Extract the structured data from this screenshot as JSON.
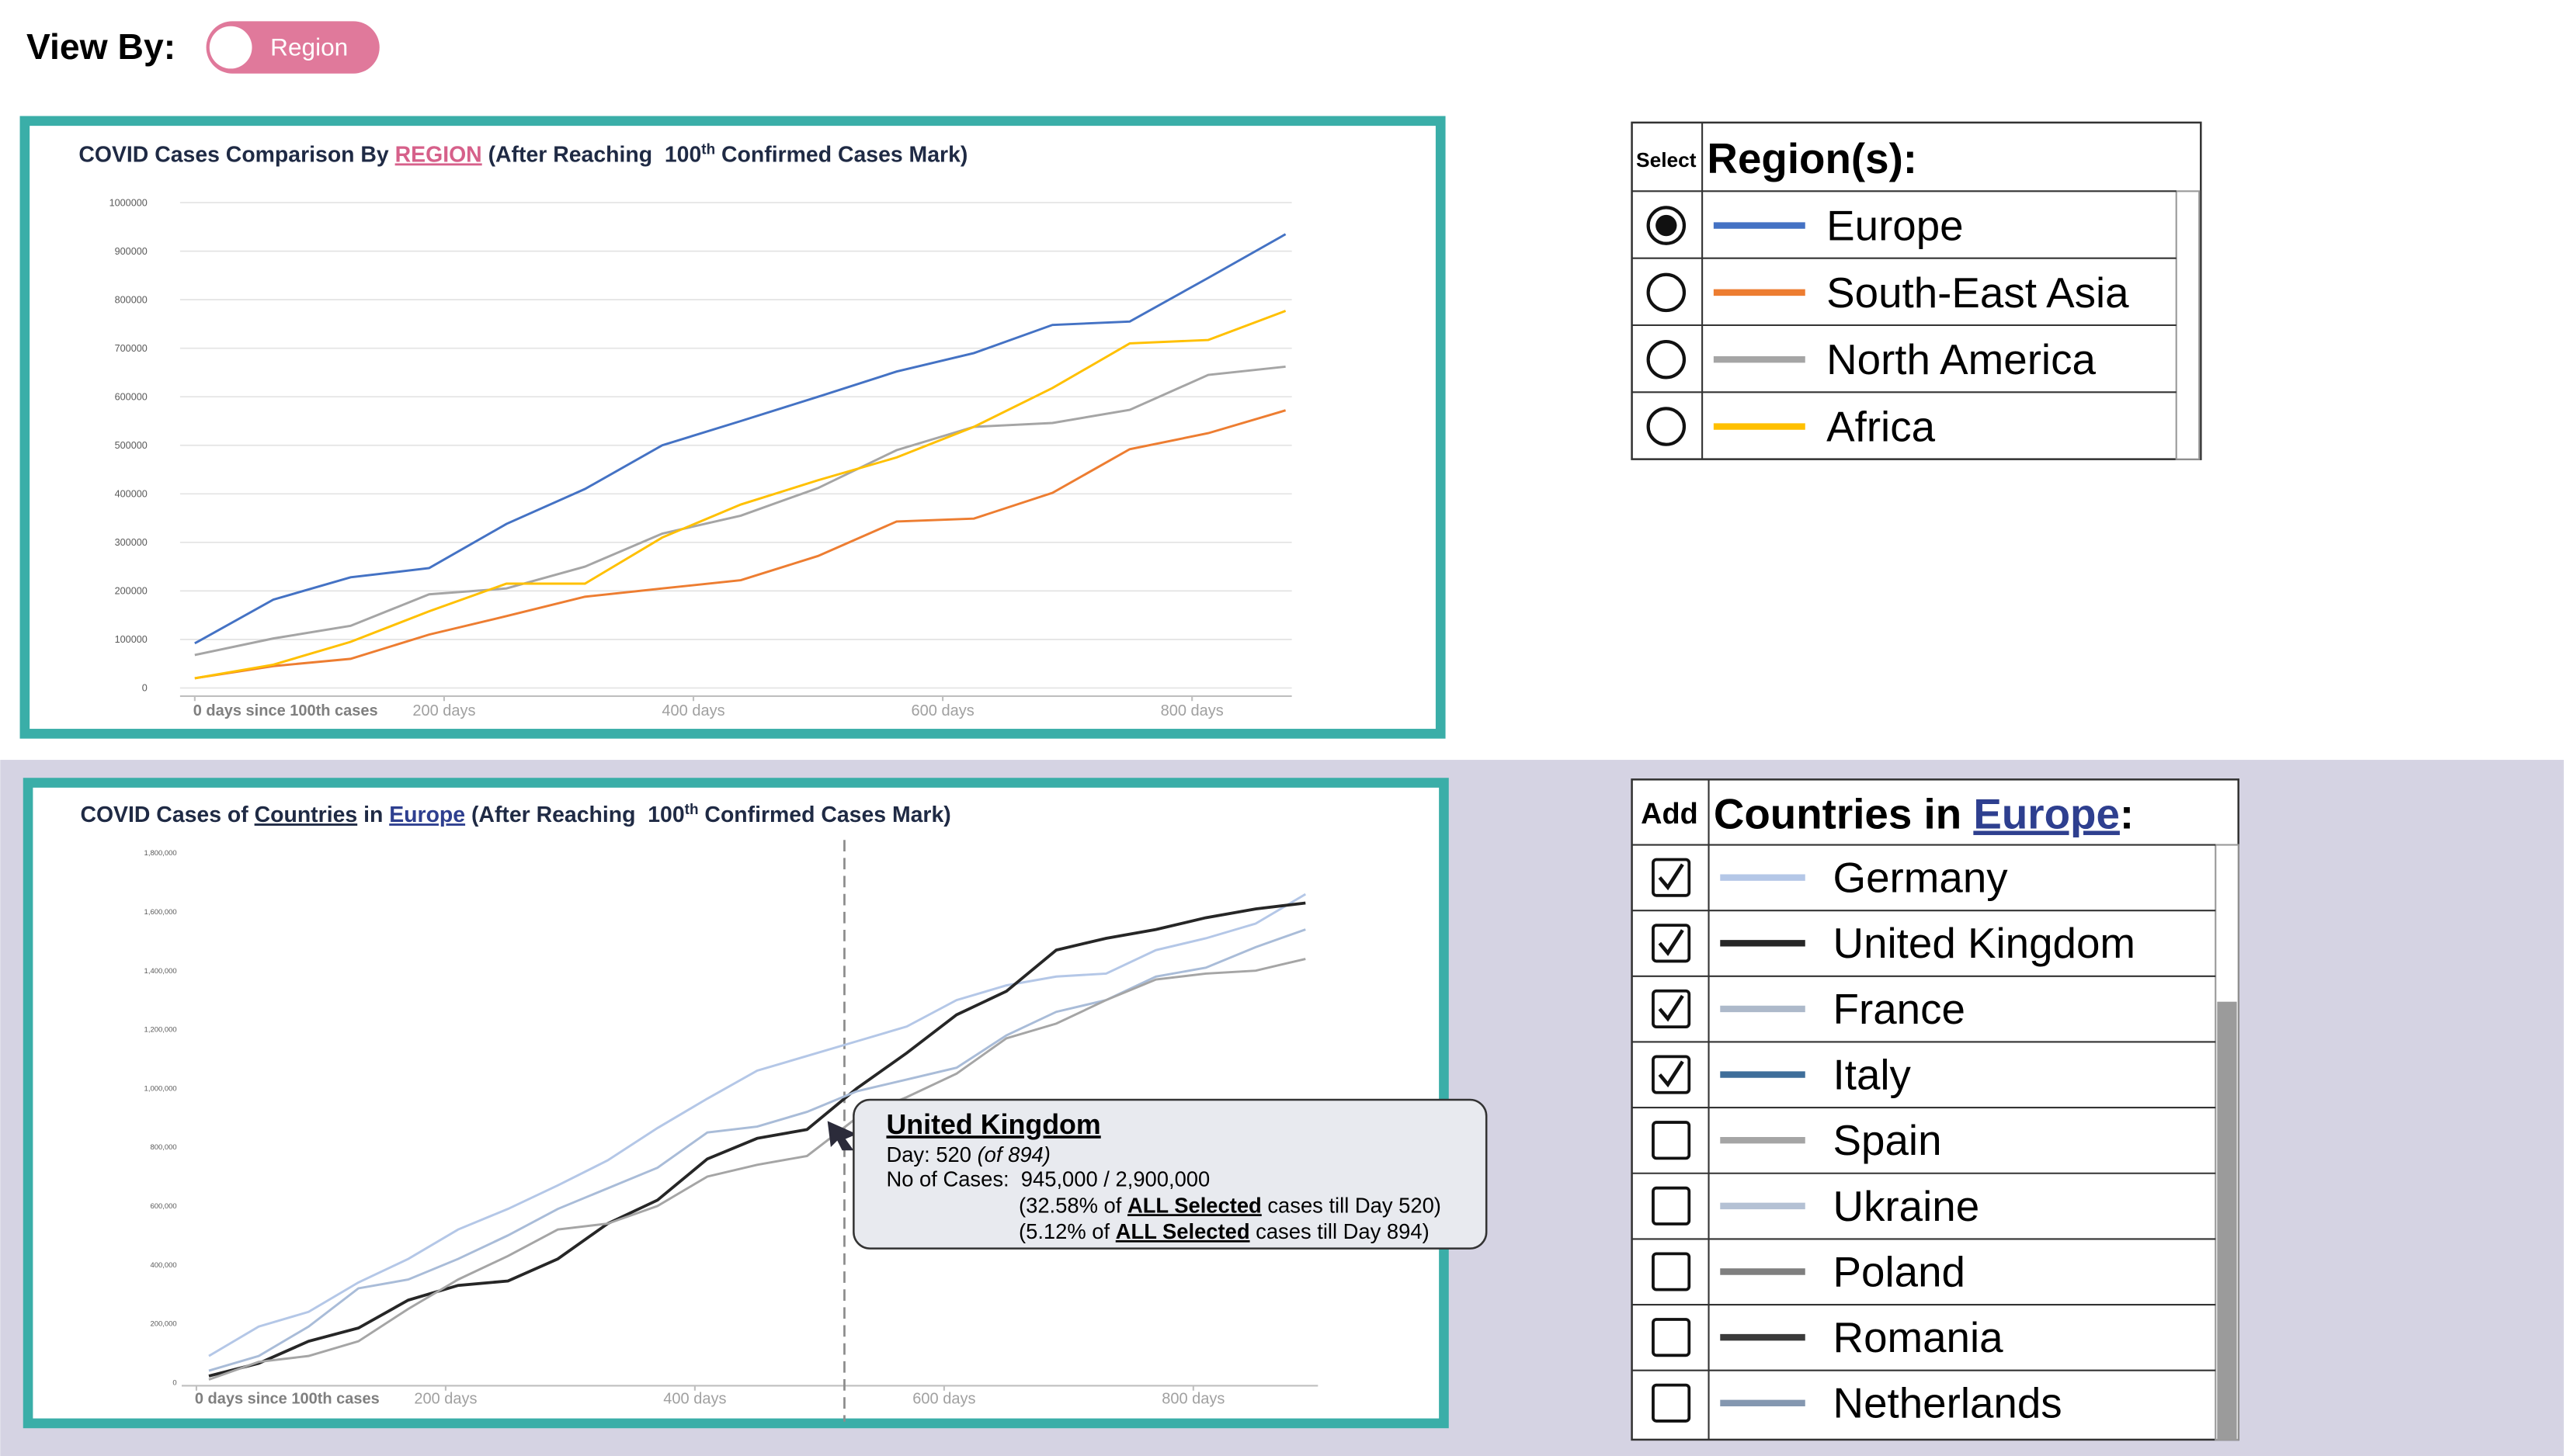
{
  "header": {
    "label": "View By:",
    "toggle": "Region"
  },
  "chart_data": [
    {
      "type": "line",
      "title_parts": [
        "COVID Cases Comparison By ",
        "REGION",
        " (After Reaching  100",
        "th",
        " Confirmed Cases Mark)"
      ],
      "x": [
        0,
        63,
        125,
        188,
        250,
        313,
        375,
        438,
        500,
        563,
        625,
        688,
        750,
        813,
        875
      ],
      "series": [
        {
          "name": "Europe",
          "color": "#4472c4",
          "values": [
            92000,
            182000,
            228000,
            247000,
            338000,
            410000,
            500000,
            550000,
            600000,
            652000,
            690000,
            748000,
            755000,
            845000,
            935000
          ]
        },
        {
          "name": "South-East Asia",
          "color": "#ed7d31",
          "values": [
            20000,
            45000,
            60000,
            110000,
            148000,
            188000,
            205000,
            222000,
            272000,
            343000,
            349000,
            402000,
            492000,
            525000,
            572000
          ]
        },
        {
          "name": "North America",
          "color": "#a5a5a5",
          "values": [
            68000,
            102000,
            128000,
            193000,
            205000,
            250000,
            318000,
            355000,
            412000,
            490000,
            538000,
            546000,
            573000,
            645000,
            662000
          ]
        },
        {
          "name": "Africa",
          "color": "#ffc000",
          "values": [
            20000,
            48000,
            95000,
            158000,
            215000,
            215000,
            310000,
            378000,
            428000,
            475000,
            538000,
            618000,
            710000,
            717000,
            777000
          ]
        }
      ],
      "xlim": [
        0,
        880
      ],
      "ylim": [
        0,
        1000000
      ],
      "xticks": [
        {
          "value": 0,
          "label": "0 days since 100th cases"
        },
        {
          "value": 200,
          "label": "200 days"
        },
        {
          "value": 400,
          "label": "400 days"
        },
        {
          "value": 600,
          "label": "600 days"
        },
        {
          "value": 800,
          "label": "800 days"
        }
      ],
      "yticks": [
        0,
        100000,
        200000,
        300000,
        400000,
        500000,
        600000,
        700000,
        800000,
        900000,
        1000000
      ],
      "grid": true
    },
    {
      "type": "line",
      "title_parts": [
        "COVID Cases of ",
        "Countries",
        " in ",
        "Europe",
        " (After Reaching  100",
        "th",
        " Confirmed Cases Mark)"
      ],
      "x": [
        10,
        50,
        90,
        130,
        170,
        210,
        250,
        290,
        330,
        370,
        410,
        450,
        490,
        530,
        570,
        610,
        650,
        690,
        730,
        770,
        810,
        850,
        890
      ],
      "series": [
        {
          "name": "Germany",
          "color": "#b4c7e7",
          "values": [
            90000,
            190000,
            240000,
            340000,
            420000,
            520000,
            590000,
            670000,
            755000,
            865000,
            965000,
            1060000,
            1110000,
            1160000,
            1210000,
            1300000,
            1350000,
            1380000,
            1390000,
            1470000,
            1510000,
            1560000,
            1660000
          ]
        },
        {
          "name": "United Kingdom",
          "color": "#262626",
          "values": [
            22000,
            65000,
            140000,
            185000,
            280000,
            330000,
            345000,
            420000,
            540000,
            620000,
            760000,
            830000,
            860000,
            1000000,
            1120000,
            1250000,
            1330000,
            1470000,
            1510000,
            1540000,
            1580000,
            1610000,
            1630000
          ]
        },
        {
          "name": "France",
          "color": "#a9bcd8",
          "values": [
            40000,
            90000,
            190000,
            320000,
            350000,
            420000,
            500000,
            590000,
            660000,
            730000,
            850000,
            870000,
            920000,
            990000,
            1030000,
            1070000,
            1180000,
            1260000,
            1300000,
            1380000,
            1410000,
            1480000,
            1540000
          ]
        },
        {
          "name": "Italy",
          "color": "#a5a5a5",
          "values": [
            10000,
            70000,
            90000,
            140000,
            250000,
            350000,
            430000,
            520000,
            540000,
            600000,
            700000,
            740000,
            770000,
            900000,
            970000,
            1050000,
            1170000,
            1220000,
            1300000,
            1370000,
            1390000,
            1400000,
            1440000
          ]
        }
      ],
      "xlim": [
        0,
        900
      ],
      "ylim": [
        0,
        1800000
      ],
      "cursor_x": 520,
      "xticks": [
        {
          "value": 0,
          "label": "0 days since 100th cases"
        },
        {
          "value": 200,
          "label": "200 days"
        },
        {
          "value": 400,
          "label": "400 days"
        },
        {
          "value": 600,
          "label": "600 days"
        },
        {
          "value": 800,
          "label": "800 days"
        }
      ],
      "yticks": [
        0,
        {
          "value": 200000,
          "label": "200,000"
        },
        {
          "value": 400000,
          "label": "400,000"
        },
        {
          "value": 600000,
          "label": "600,000"
        },
        {
          "value": 800000,
          "label": "800,000"
        },
        {
          "value": 1000000,
          "label": "1,000,000"
        },
        {
          "value": 1200000,
          "label": "1,200,000"
        },
        {
          "value": 1400000,
          "label": "1,400,000"
        },
        {
          "value": 1600000,
          "label": "1,600,000"
        },
        {
          "value": 1800000,
          "label": "1,800,000"
        }
      ],
      "grid": false
    }
  ],
  "region_table": {
    "select_header": "Select",
    "title": "Region(s):",
    "selected": [
      true,
      false,
      false,
      false
    ]
  },
  "country_table": {
    "add_header": "Add",
    "title_parts": [
      "Countries in ",
      "Europe",
      ":"
    ],
    "rows": [
      {
        "name": "Germany",
        "color": "#b4c7e7",
        "checked": true
      },
      {
        "name": "United Kingdom",
        "color": "#262626",
        "checked": true
      },
      {
        "name": "France",
        "color": "#adb9ca",
        "checked": true
      },
      {
        "name": "Italy",
        "color": "#3e6e9a",
        "checked": true
      },
      {
        "name": "Spain",
        "color": "#a5a5a5",
        "checked": false
      },
      {
        "name": "Ukraine",
        "color": "#b4c1d4",
        "checked": false
      },
      {
        "name": "Poland",
        "color": "#7f7f7f",
        "checked": false
      },
      {
        "name": "Romania",
        "color": "#3a3a3a",
        "checked": false
      },
      {
        "name": "Netherlands",
        "color": "#8497b0",
        "checked": false
      }
    ]
  },
  "tooltip": {
    "title": "United Kingdom",
    "day": "Day: 520 ",
    "day_total": "(of 894)",
    "cases": "No of Cases:  945,000 / 2,900,000",
    "share1": [
      "(32.58% of ",
      "ALL Selected",
      " cases till Day 520)"
    ],
    "share2": [
      "(5.12% of ",
      "ALL Selected",
      " cases till Day 894)"
    ]
  }
}
